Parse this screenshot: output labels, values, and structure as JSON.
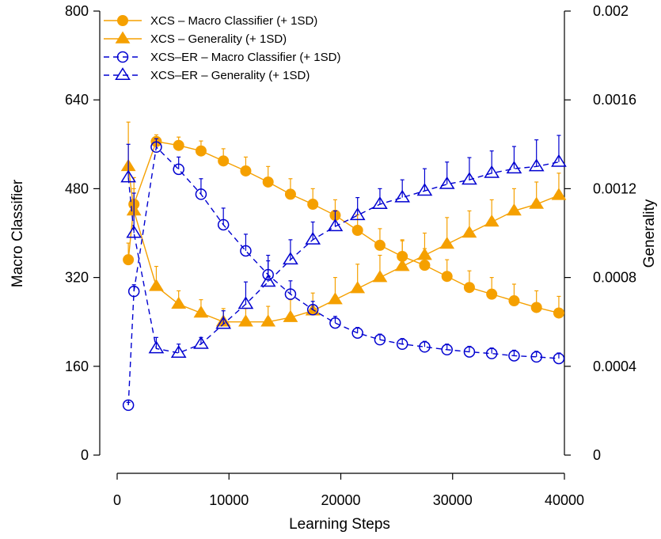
{
  "chart_data": {
    "type": "line",
    "title": "",
    "xlabel": "Learning Steps",
    "ylabel": "Macro Classifier",
    "y2label": "Generality",
    "xlim": [
      0,
      40000
    ],
    "ylim": [
      0,
      800
    ],
    "y2lim": [
      0,
      0.002
    ],
    "x_ticks": [
      "0",
      "10000",
      "20000",
      "30000",
      "40000"
    ],
    "y_ticks": [
      "0",
      "160",
      "320",
      "480",
      "640",
      "800"
    ],
    "y2_ticks": [
      "0",
      "0.0004",
      "0.0008",
      "0.0012",
      "0.0016",
      "0.002"
    ],
    "legend_position": "top-left",
    "colors": {
      "xcs": "#f5a000",
      "xcs_er": "#0000d0"
    },
    "series": [
      {
        "name": "XCS – Macro Classifier (+ 1SD)",
        "axis": "left",
        "marker": "filled-circle",
        "color": "#f5a000",
        "line": "solid",
        "x": [
          1000,
          1500,
          3500,
          5500,
          7500,
          9500,
          11500,
          13500,
          15500,
          17500,
          19500,
          21500,
          23500,
          25500,
          27500,
          29500,
          31500,
          33500,
          35500,
          37500,
          39500
        ],
        "y": [
          352,
          452,
          565,
          558,
          548,
          530,
          512,
          492,
          470,
          452,
          432,
          405,
          378,
          358,
          342,
          322,
          302,
          290,
          278,
          266,
          256
        ],
        "sd": [
          30,
          28,
          12,
          15,
          18,
          22,
          25,
          28,
          28,
          28,
          28,
          28,
          30,
          28,
          30,
          30,
          30,
          30,
          30,
          30,
          30
        ]
      },
      {
        "name": "XCS – Generality (+ 1SD)",
        "axis": "right",
        "marker": "filled-triangle",
        "color": "#f5a000",
        "line": "solid",
        "x": [
          1000,
          1500,
          3500,
          5500,
          7500,
          9500,
          11500,
          13500,
          15500,
          17500,
          19500,
          21500,
          23500,
          25500,
          27500,
          29500,
          31500,
          33500,
          35500,
          37500,
          39500
        ],
        "y": [
          0.0013,
          0.0011,
          0.00076,
          0.00068,
          0.00064,
          0.0006,
          0.0006,
          0.0006,
          0.00062,
          0.00065,
          0.0007,
          0.00075,
          0.0008,
          0.00085,
          0.0009,
          0.00095,
          0.001,
          0.00105,
          0.0011,
          0.00113,
          0.00117
        ],
        "sd": [
          0.0002,
          0.00015,
          9e-05,
          6e-05,
          6e-05,
          6e-05,
          6e-05,
          7e-05,
          8e-05,
          8e-05,
          0.0001,
          0.00011,
          0.0001,
          0.00012,
          0.0001,
          0.00012,
          0.0001,
          0.0001,
          0.0001,
          0.0001,
          0.0001
        ]
      },
      {
        "name": "XCS–ER – Macro Classifier (+ 1SD)",
        "axis": "left",
        "marker": "open-circle",
        "color": "#0000d0",
        "line": "dashed",
        "x": [
          1000,
          1500,
          3500,
          5500,
          7500,
          9500,
          11500,
          13500,
          15500,
          17500,
          19500,
          21500,
          23500,
          25500,
          27500,
          29500,
          31500,
          33500,
          35500,
          37500,
          39500
        ],
        "y": [
          90,
          295,
          555,
          515,
          470,
          415,
          368,
          325,
          290,
          262,
          238,
          220,
          208,
          200,
          195,
          190,
          186,
          183,
          179,
          177,
          174
        ],
        "sd": [
          5,
          12,
          15,
          22,
          28,
          30,
          30,
          25,
          24,
          15,
          12,
          10,
          10,
          10,
          10,
          10,
          10,
          10,
          10,
          10,
          10
        ]
      },
      {
        "name": "XCS–ER – Generality (+ 1SD)",
        "axis": "right",
        "marker": "open-triangle",
        "color": "#0000d0",
        "line": "dashed",
        "x": [
          1000,
          1500,
          3500,
          5500,
          7500,
          9500,
          11500,
          13500,
          15500,
          17500,
          19500,
          21500,
          23500,
          25500,
          27500,
          29500,
          31500,
          33500,
          35500,
          37500,
          39500
        ],
        "y": [
          0.00125,
          0.001,
          0.00048,
          0.00046,
          0.0005,
          0.00059,
          0.00068,
          0.00078,
          0.00088,
          0.00097,
          0.00103,
          0.00108,
          0.00113,
          0.00116,
          0.00119,
          0.00122,
          0.00124,
          0.00127,
          0.00129,
          0.0013,
          0.00132
        ],
        "sd": [
          0.00015,
          0.00018,
          5e-05,
          4e-05,
          3e-05,
          6e-05,
          0.0001,
          0.00012,
          9e-05,
          8e-05,
          7e-05,
          8e-05,
          7e-05,
          8e-05,
          0.0001,
          0.0001,
          0.0001,
          0.0001,
          0.0001,
          0.00012,
          0.00012
        ]
      }
    ]
  }
}
